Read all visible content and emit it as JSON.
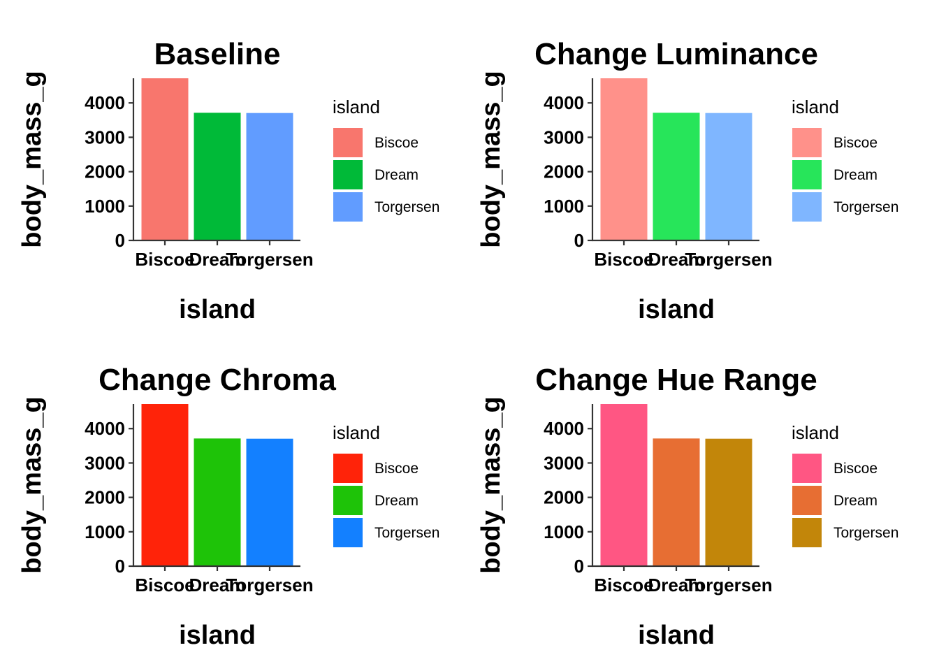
{
  "chart_data": [
    {
      "type": "bar",
      "title": "Baseline",
      "xlabel": "island",
      "ylabel": "body_mass_g",
      "categories": [
        "Biscoe",
        "Dream",
        "Torgersen"
      ],
      "values": [
        4716,
        3713,
        3706
      ],
      "ylim": [
        0,
        4716
      ],
      "yticks": [
        "0",
        "1000",
        "2000",
        "3000",
        "4000"
      ],
      "colors": [
        "#F8766D",
        "#00BA38",
        "#619CFF"
      ],
      "legend": {
        "title": "island",
        "entries": [
          "Biscoe",
          "Dream",
          "Torgersen"
        ],
        "placement": "right"
      },
      "grid": false
    },
    {
      "type": "bar",
      "title": "Change Luminance",
      "xlabel": "island",
      "ylabel": "body_mass_g",
      "categories": [
        "Biscoe",
        "Dream",
        "Torgersen"
      ],
      "values": [
        4716,
        3713,
        3706
      ],
      "ylim": [
        0,
        4716
      ],
      "yticks": [
        "0",
        "1000",
        "2000",
        "3000",
        "4000"
      ],
      "colors": [
        "#FF918A",
        "#27E55A",
        "#7FB6FF"
      ],
      "legend": {
        "title": "island",
        "entries": [
          "Biscoe",
          "Dream",
          "Torgersen"
        ],
        "placement": "right"
      },
      "grid": false
    },
    {
      "type": "bar",
      "title": "Change Chroma",
      "xlabel": "island",
      "ylabel": "body_mass_g",
      "categories": [
        "Biscoe",
        "Dream",
        "Torgersen"
      ],
      "values": [
        4716,
        3713,
        3706
      ],
      "ylim": [
        0,
        4716
      ],
      "yticks": [
        "0",
        "1000",
        "2000",
        "3000",
        "4000"
      ],
      "colors": [
        "#FF2309",
        "#1EC308",
        "#1380FF"
      ],
      "legend": {
        "title": "island",
        "entries": [
          "Biscoe",
          "Dream",
          "Torgersen"
        ],
        "placement": "right"
      },
      "grid": false
    },
    {
      "type": "bar",
      "title": "Change Hue Range",
      "xlabel": "island",
      "ylabel": "body_mass_g",
      "categories": [
        "Biscoe",
        "Dream",
        "Torgersen"
      ],
      "values": [
        4716,
        3713,
        3706
      ],
      "ylim": [
        0,
        4716
      ],
      "yticks": [
        "0",
        "1000",
        "2000",
        "3000",
        "4000"
      ],
      "colors": [
        "#FF5683",
        "#E76E33",
        "#C2860A"
      ],
      "legend": {
        "title": "island",
        "entries": [
          "Biscoe",
          "Dream",
          "Torgersen"
        ],
        "placement": "right"
      },
      "grid": false
    }
  ]
}
